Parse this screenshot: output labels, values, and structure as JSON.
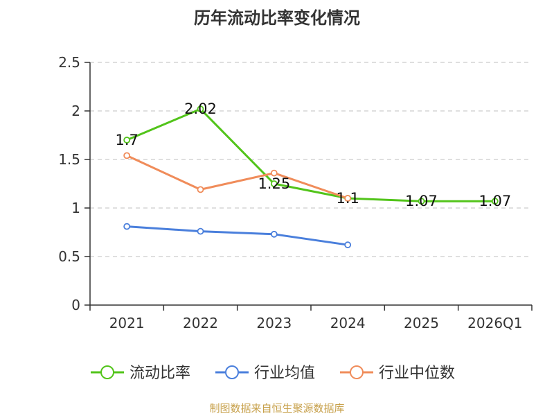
{
  "chart_data": {
    "type": "line",
    "title": "历年流动比率变化情况",
    "categories": [
      "2021",
      "2022",
      "2023",
      "2024",
      "2025",
      "2026Q1"
    ],
    "ylim": [
      0,
      2.5
    ],
    "yticks": [
      "0",
      "0.5",
      "1",
      "1.5",
      "2",
      "2.5"
    ],
    "grid": true,
    "legend_position": "bottom",
    "series": [
      {
        "name": "流动比率",
        "color": "#52c41a",
        "values": [
          1.7,
          2.02,
          1.25,
          1.1,
          1.07,
          1.07
        ],
        "labels": [
          "1.7",
          "2.02",
          "1.25",
          "1.1",
          "1.07",
          "1.07"
        ]
      },
      {
        "name": "行业均值",
        "color": "#4a7fdc",
        "values": [
          0.81,
          0.76,
          0.73,
          0.62,
          null,
          null
        ]
      },
      {
        "name": "行业中位数",
        "color": "#f08c5a",
        "values": [
          1.54,
          1.19,
          1.36,
          1.1,
          null,
          null
        ]
      }
    ]
  },
  "source": "制图数据来自恒生聚源数据库"
}
